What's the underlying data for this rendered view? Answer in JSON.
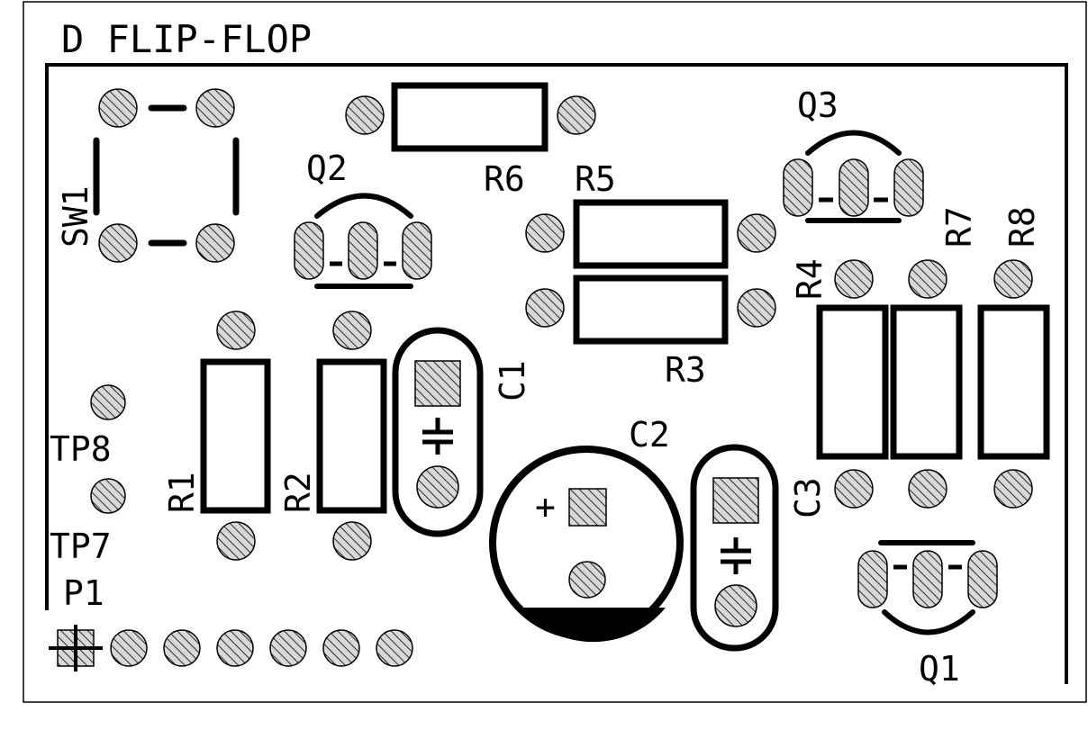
{
  "title": "D FLIP-FLOP",
  "colors": {
    "ink": "#000000",
    "paper": "#ffffff",
    "pad_fill": "#d8d8d8"
  },
  "labels": {
    "sw1": "SW1",
    "q1": "Q1",
    "q2": "Q2",
    "q3": "Q3",
    "r1": "R1",
    "r2": "R2",
    "r3": "R3",
    "r4": "R4",
    "r5": "R5",
    "r6": "R6",
    "r7": "R7",
    "r8": "R8",
    "c1": "C1",
    "c2": "C2",
    "c3": "C3",
    "tp7": "TP7",
    "tp8": "TP8",
    "p1": "P1",
    "c2_plus": "+"
  },
  "connector_p1_pins": 7
}
